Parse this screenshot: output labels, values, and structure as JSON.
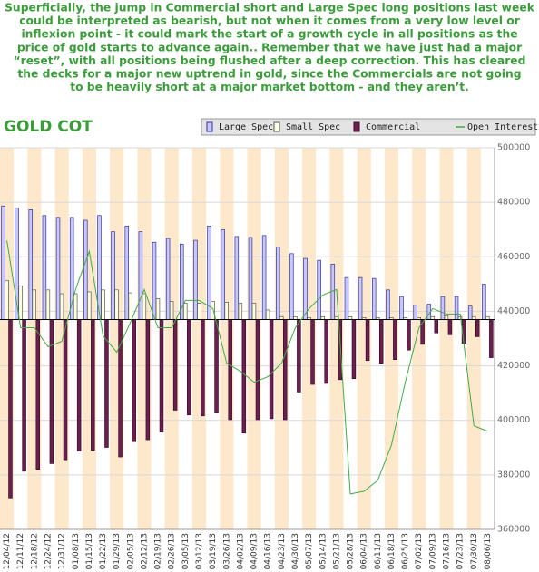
{
  "commentary": [
    "Superficially, the jump in Commercial short and Large Spec long positions last week",
    "could be interpreted as bearish, but not when it comes from a very low level or",
    "inflexion point  - it could mark the start of a growth cycle in all positions as the",
    "price of gold starts to advance again.. Remember that we have just had a major",
    "“reset”, with all positions being flushed after a deep correction. This has cleared",
    "the decks for a major new uptrend in gold, since the Commercials are not going",
    "to be heavily short at a major market bottom - and they aren’t."
  ],
  "chart_data": {
    "type": "bar",
    "title": "GOLD COT",
    "categories": [
      "12/04/12",
      "12/11/12",
      "12/18/12",
      "12/24/12",
      "12/31/12",
      "01/08/13",
      "01/15/13",
      "01/22/13",
      "01/29/13",
      "02/05/13",
      "02/12/13",
      "02/19/13",
      "02/26/13",
      "03/05/13",
      "03/12/13",
      "03/19/13",
      "03/26/13",
      "04/02/13",
      "04/09/13",
      "04/16/13",
      "04/23/13",
      "04/30/13",
      "05/07/13",
      "05/14/13",
      "05/21/13",
      "05/28/13",
      "06/04/13",
      "06/11/13",
      "06/18/13",
      "06/25/13",
      "07/02/13",
      "07/09/13",
      "07/16/13",
      "07/23/13",
      "07/30/13",
      "08/06/13"
    ],
    "series": [
      {
        "name": "Large Spec",
        "color": "#c8c8f8",
        "values": [
          119000,
          117000,
          115000,
          109000,
          107000,
          107000,
          104000,
          109000,
          92000,
          98000,
          92000,
          81000,
          85000,
          79000,
          83000,
          98000,
          94000,
          87000,
          86000,
          88000,
          76000,
          69000,
          64000,
          62000,
          58000,
          44000,
          44000,
          43000,
          31000,
          24000,
          15000,
          16000,
          24000,
          24000,
          14000,
          37000
        ]
      },
      {
        "name": "Small Spec",
        "color": "#ffffe0",
        "values": [
          41000,
          35000,
          31000,
          31000,
          27000,
          27000,
          29000,
          31000,
          31000,
          28000,
          27000,
          22000,
          19000,
          17000,
          17000,
          19000,
          18000,
          17000,
          17000,
          10000,
          3000,
          3000,
          2000,
          3000,
          3000,
          3000,
          2000,
          2000,
          2000,
          2000,
          2000,
          3000,
          4000,
          3000,
          3000,
          3000
        ]
      },
      {
        "name": "Commercial",
        "color": "#6a1f4e",
        "values": [
          -187000,
          -159000,
          -157000,
          -151000,
          -147000,
          -138000,
          -137000,
          -134000,
          -144000,
          -128000,
          -126000,
          -118000,
          -95000,
          -100000,
          -101000,
          -98000,
          -105000,
          -119000,
          -105000,
          -104000,
          -105000,
          -76000,
          -68000,
          -67000,
          -63000,
          -62000,
          -43000,
          -46000,
          -42000,
          -32000,
          -26000,
          -14000,
          -16000,
          -25000,
          -18000,
          -40000
        ]
      },
      {
        "name": "Open Interest",
        "color": "#44aa44",
        "axis": "y2",
        "values": [
          466000,
          434000,
          434000,
          427000,
          429000,
          448000,
          462000,
          431000,
          425000,
          436000,
          448000,
          434000,
          434000,
          444000,
          444000,
          441000,
          421000,
          418000,
          414000,
          416000,
          421000,
          434000,
          441000,
          446000,
          448000,
          373000,
          374000,
          378000,
          391000,
          414000,
          434000,
          441000,
          439000,
          439000,
          398000,
          396000
        ]
      }
    ],
    "ylim": [
      -220000,
      180000
    ],
    "y2lim": [
      360000,
      500000
    ],
    "y2ticks": [
      360000,
      380000,
      400000,
      420000,
      440000,
      460000,
      480000,
      500000
    ],
    "grid": true
  }
}
